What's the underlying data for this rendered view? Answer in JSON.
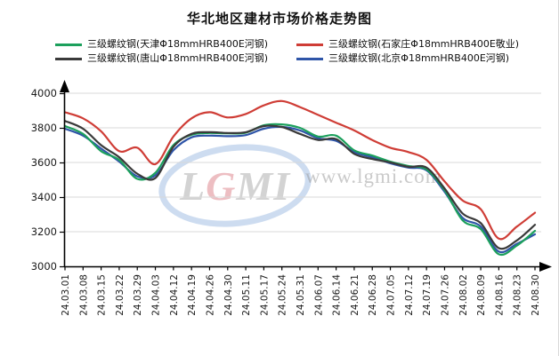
{
  "title": "华北地区建材市场价格走势图",
  "watermark": {
    "logo_text": "LGMI",
    "logo_accent_letter": "G",
    "site_text": "www.lgmi.com"
  },
  "colors": {
    "axis": "#000000",
    "grid": "#d8d8d8",
    "tick_label": "#1a1a1a"
  },
  "chart_data": {
    "type": "line",
    "title": "华北地区建材市场价格走势图",
    "xlabel": "",
    "ylabel": "",
    "ylim": [
      3000,
      4000
    ],
    "yticks": [
      3000,
      3200,
      3400,
      3600,
      3800,
      4000
    ],
    "grid": true,
    "legend_position": "top",
    "x": [
      "24.03.01",
      "24.03.08",
      "24.03.15",
      "24.03.22",
      "24.03.29",
      "24.04.03",
      "24.04.12",
      "24.04.19",
      "24.04.26",
      "24.04.30",
      "24.05.11",
      "24.05.17",
      "24.05.24",
      "24.05.31",
      "24.06.07",
      "24.06.14",
      "24.06.21",
      "24.06.28",
      "24.07.05",
      "24.07.12",
      "24.07.19",
      "24.07.26",
      "24.08.02",
      "24.08.09",
      "24.08.16",
      "24.08.23",
      "24.08.30"
    ],
    "series": [
      {
        "id": "tianjin",
        "name": "三级螺纹钢(天津Φ18mmHRB400E河钢)",
        "color": "#1ca05c",
        "values": [
          3810,
          3765,
          3665,
          3615,
          3505,
          3540,
          3700,
          3760,
          3770,
          3768,
          3772,
          3815,
          3820,
          3800,
          3750,
          3755,
          3670,
          3640,
          3605,
          3580,
          3560,
          3440,
          3265,
          3215,
          3070,
          3120,
          3205
        ]
      },
      {
        "id": "shijiazhuang",
        "name": "三级螺纹钢(石家庄Φ18mmHRB400E敬业)",
        "color": "#cf3d36",
        "values": [
          3890,
          3855,
          3780,
          3665,
          3685,
          3590,
          3750,
          3855,
          3890,
          3860,
          3880,
          3930,
          3955,
          3920,
          3875,
          3830,
          3785,
          3730,
          3685,
          3660,
          3615,
          3490,
          3380,
          3330,
          3160,
          3230,
          3310
        ]
      },
      {
        "id": "tangshan",
        "name": "三级螺纹钢(唐山Φ18mmHRB400E河钢)",
        "color": "#3a3a3a",
        "values": [
          3840,
          3795,
          3700,
          3630,
          3535,
          3510,
          3690,
          3765,
          3775,
          3770,
          3775,
          3810,
          3805,
          3765,
          3730,
          3735,
          3650,
          3620,
          3600,
          3575,
          3570,
          3450,
          3305,
          3250,
          3105,
          3150,
          3240
        ]
      },
      {
        "id": "beijing",
        "name": "三级螺纹钢(北京Φ18mmHRB400E河钢)",
        "color": "#2f55a8",
        "values": [
          3795,
          3755,
          3680,
          3605,
          3520,
          3525,
          3670,
          3745,
          3755,
          3752,
          3758,
          3795,
          3805,
          3785,
          3740,
          3725,
          3660,
          3630,
          3595,
          3570,
          3555,
          3430,
          3280,
          3230,
          3085,
          3130,
          3185
        ]
      }
    ]
  }
}
